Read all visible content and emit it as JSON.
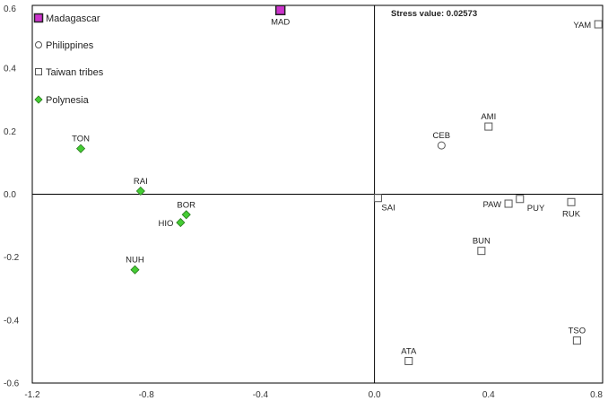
{
  "chart_data": {
    "type": "scatter",
    "title": "",
    "xlabel": "",
    "ylabel": "",
    "xlim": [
      -1.2,
      0.8
    ],
    "ylim": [
      -0.6,
      0.6
    ],
    "x_ticks": [
      "-1.2",
      "-0.8",
      "-0.4",
      "0.0",
      "0.4",
      "0.8"
    ],
    "x_tick_values": [
      -1.2,
      -0.8,
      -0.4,
      0.0,
      0.4,
      0.8
    ],
    "y_ticks": [
      "0.6",
      "0.4",
      "0.2",
      "0.0",
      "-0.2",
      "-0.4",
      "-0.6"
    ],
    "y_tick_values": [
      0.6,
      0.4,
      0.2,
      0.0,
      -0.2,
      -0.4,
      -0.6
    ],
    "annotation": "Stress value: 0.02573",
    "legend_position": "top-left",
    "grid": false,
    "series": [
      {
        "name": "Madagascar",
        "marker": "square",
        "color": "#cc33cc",
        "points": [
          {
            "label": "MAD",
            "x": -0.33,
            "y": 0.585,
            "label_pos": "below"
          }
        ]
      },
      {
        "name": "Philippines",
        "marker": "circle",
        "color": "#ffffff",
        "points": [
          {
            "label": "CEB",
            "x": 0.235,
            "y": 0.155,
            "label_pos": "above"
          }
        ]
      },
      {
        "name": "Taiwan tribes",
        "marker": "square",
        "color": "#ffffff",
        "points": [
          {
            "label": "YAM",
            "x": 0.785,
            "y": 0.54,
            "label_pos": "left"
          },
          {
            "label": "AMI",
            "x": 0.4,
            "y": 0.215,
            "label_pos": "above"
          },
          {
            "label": "SAI",
            "x": 0.012,
            "y": -0.012,
            "label_pos": "right-below"
          },
          {
            "label": "PAW",
            "x": 0.47,
            "y": -0.03,
            "label_pos": "left"
          },
          {
            "label": "PUY",
            "x": 0.51,
            "y": -0.015,
            "label_pos": "right-below"
          },
          {
            "label": "RUK",
            "x": 0.69,
            "y": -0.025,
            "label_pos": "below"
          },
          {
            "label": "BUN",
            "x": 0.375,
            "y": -0.18,
            "label_pos": "above"
          },
          {
            "label": "TSO",
            "x": 0.71,
            "y": -0.465,
            "label_pos": "above"
          },
          {
            "label": "ATA",
            "x": 0.12,
            "y": -0.53,
            "label_pos": "above"
          }
        ]
      },
      {
        "name": "Polynesia",
        "marker": "diamond",
        "color": "#44cc33",
        "points": [
          {
            "label": "TON",
            "x": -1.03,
            "y": 0.145,
            "label_pos": "above"
          },
          {
            "label": "RAI",
            "x": -0.82,
            "y": 0.01,
            "label_pos": "above"
          },
          {
            "label": "BOR",
            "x": -0.66,
            "y": -0.065,
            "label_pos": "above"
          },
          {
            "label": "HIO",
            "x": -0.68,
            "y": -0.09,
            "label_pos": "left"
          },
          {
            "label": "NUH",
            "x": -0.84,
            "y": -0.24,
            "label_pos": "above"
          }
        ]
      }
    ]
  }
}
